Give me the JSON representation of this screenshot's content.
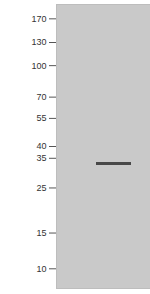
{
  "chart_data": {
    "type": "blot",
    "log": "y",
    "ylim": [
      8,
      200
    ],
    "yticks": [
      170,
      130,
      100,
      70,
      55,
      40,
      35,
      25,
      15,
      10
    ],
    "values": [
      33
    ],
    "color": "#3a3a3a",
    "tick_labels": "y"
  }
}
